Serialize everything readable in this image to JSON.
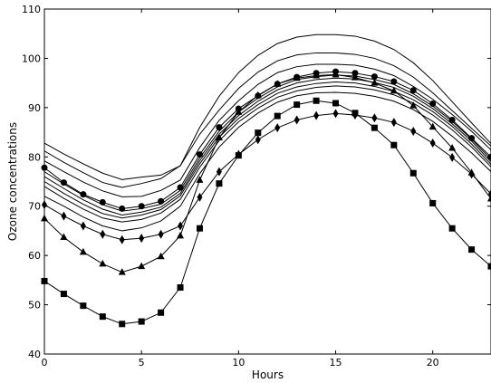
{
  "chart_data": {
    "type": "line",
    "title": "",
    "xlabel": "Hours",
    "ylabel": "Ozone concentrations",
    "xlim": [
      0,
      23
    ],
    "ylim": [
      40,
      110
    ],
    "x_ticks": [
      0,
      5,
      10,
      15,
      20
    ],
    "y_ticks": [
      40,
      50,
      60,
      70,
      80,
      90,
      100,
      110
    ],
    "grid": false,
    "legend": false,
    "x": [
      0,
      1,
      2,
      3,
      4,
      5,
      6,
      7,
      8,
      9,
      10,
      11,
      12,
      13,
      14,
      15,
      16,
      17,
      18,
      19,
      20,
      21,
      22,
      23
    ],
    "series": [
      {
        "marker": "none",
        "values": [
          82.8,
          80.6,
          78.6,
          76.7,
          75.4,
          75.9,
          76.3,
          78.2,
          86.0,
          92.3,
          97.1,
          100.6,
          103.0,
          104.3,
          104.8,
          104.8,
          104.5,
          103.5,
          101.8,
          99.1,
          95.5,
          91.2,
          86.9,
          82.7
        ]
      },
      {
        "marker": "none",
        "values": [
          81.2,
          78.9,
          76.8,
          74.8,
          73.8,
          74.6,
          75.6,
          78.2,
          84.6,
          89.5,
          93.9,
          97.2,
          99.5,
          100.7,
          101.1,
          101.1,
          100.8,
          100.0,
          98.5,
          96.2,
          93.0,
          89.4,
          85.8,
          82.2
        ]
      },
      {
        "marker": "none",
        "values": [
          79.2,
          77.0,
          74.9,
          73.1,
          71.9,
          72.0,
          73.2,
          75.3,
          81.9,
          87.4,
          91.4,
          94.7,
          97.1,
          98.3,
          98.8,
          98.8,
          98.6,
          97.8,
          96.5,
          94.3,
          91.7,
          88.6,
          85.2,
          81.4
        ]
      },
      {
        "marker": "circle",
        "values": [
          77.8,
          74.8,
          72.4,
          70.8,
          69.5,
          70.0,
          71.0,
          73.8,
          80.5,
          86.0,
          89.8,
          92.4,
          94.8,
          96.2,
          97.0,
          97.3,
          97.0,
          96.3,
          95.3,
          93.5,
          90.8,
          87.5,
          83.8,
          80.0
        ]
      },
      {
        "marker": "none",
        "values": [
          77.0,
          74.5,
          72.2,
          70.3,
          69.0,
          69.5,
          70.4,
          73.2,
          79.8,
          85.2,
          89.1,
          91.9,
          94.2,
          95.7,
          96.3,
          96.6,
          96.4,
          95.7,
          94.7,
          92.8,
          90.3,
          87.2,
          83.6,
          79.5
        ]
      },
      {
        "marker": "none",
        "values": [
          76.0,
          73.6,
          71.3,
          69.4,
          68.2,
          68.8,
          69.8,
          72.6,
          79.2,
          84.6,
          88.4,
          91.3,
          93.6,
          95.0,
          95.7,
          96.0,
          95.8,
          95.1,
          94.1,
          92.3,
          89.8,
          86.7,
          83.2,
          79.0
        ]
      },
      {
        "marker": "none",
        "values": [
          75.0,
          72.6,
          70.4,
          68.5,
          67.6,
          68.2,
          69.3,
          72.1,
          78.6,
          84.0,
          87.8,
          90.6,
          92.9,
          94.2,
          94.9,
          95.2,
          95.0,
          94.3,
          93.3,
          91.6,
          89.2,
          86.2,
          82.6,
          78.5
        ]
      },
      {
        "marker": "none",
        "values": [
          74.0,
          71.6,
          69.4,
          67.6,
          66.8,
          67.3,
          68.6,
          71.4,
          77.9,
          83.3,
          87.1,
          89.9,
          92.1,
          93.4,
          94.1,
          94.4,
          94.2,
          93.6,
          92.6,
          90.9,
          88.5,
          85.5,
          82.0,
          78.0
        ]
      },
      {
        "marker": "none",
        "values": [
          72.0,
          70.0,
          67.8,
          66.0,
          65.0,
          65.6,
          67.0,
          70.0,
          76.6,
          82.0,
          86.0,
          88.9,
          91.1,
          92.4,
          93.0,
          93.1,
          92.9,
          92.3,
          91.3,
          89.6,
          87.2,
          84.2,
          80.8,
          77.0
        ]
      },
      {
        "marker": "diamond",
        "values": [
          70.3,
          68.0,
          66.0,
          64.3,
          63.2,
          63.5,
          64.3,
          66.0,
          71.8,
          77.0,
          80.5,
          83.5,
          85.9,
          87.5,
          88.4,
          88.8,
          88.5,
          87.9,
          87.0,
          85.2,
          82.8,
          79.9,
          76.5,
          72.5
        ]
      },
      {
        "marker": "triangle",
        "values": [
          67.5,
          63.7,
          60.7,
          58.3,
          56.6,
          57.8,
          59.8,
          64.0,
          75.3,
          83.9,
          89.1,
          92.5,
          94.8,
          96.0,
          96.5,
          96.7,
          96.1,
          95.0,
          93.4,
          90.4,
          86.1,
          81.8,
          76.8,
          71.5
        ]
      },
      {
        "marker": "square",
        "values": [
          54.8,
          52.2,
          49.8,
          47.6,
          46.1,
          46.6,
          48.4,
          53.5,
          65.5,
          74.6,
          80.3,
          84.9,
          88.3,
          90.6,
          91.4,
          90.9,
          88.9,
          85.9,
          82.4,
          76.7,
          70.6,
          65.5,
          61.2,
          57.8
        ]
      }
    ]
  }
}
